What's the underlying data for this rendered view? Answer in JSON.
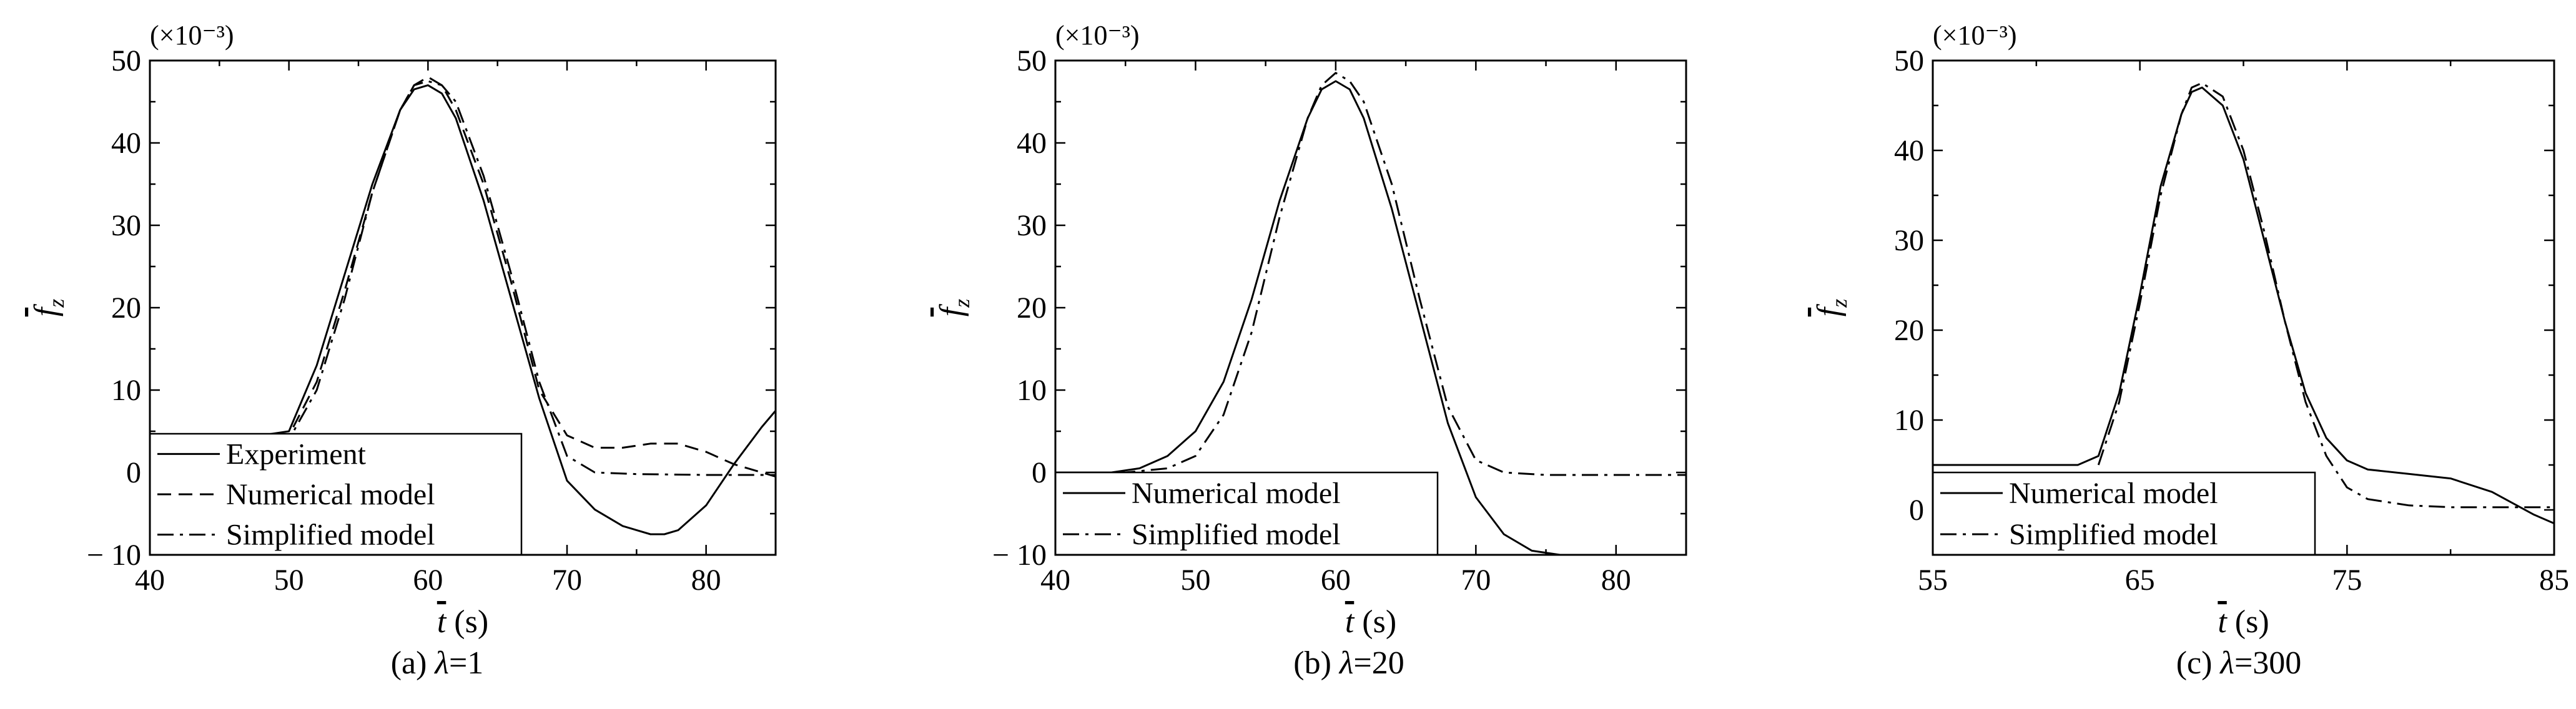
{
  "chart_data": [
    {
      "type": "line",
      "caption_prefix": "(a) ",
      "caption_symbol": "λ",
      "caption_suffix": "=1",
      "scale_note": "(×10⁻³)",
      "xlabel_symbol": "t",
      "xlabel_unit": "(s)",
      "ylabel_symbol": "f",
      "ylabel_sub": "z",
      "xlim": [
        40,
        85
      ],
      "ylim": [
        -10,
        50
      ],
      "xticks": [
        40,
        50,
        60,
        70,
        80
      ],
      "yticks": [
        -10,
        0,
        10,
        20,
        30,
        40,
        50
      ],
      "ytick_labels": [
        "− 10",
        "0",
        "10",
        "20",
        "30",
        "40",
        "50"
      ],
      "legend_position": "bottom-left",
      "series": [
        {
          "name": "Experiment",
          "style": "solid",
          "x": [
            40,
            45,
            48,
            50,
            52,
            54,
            56,
            58,
            59,
            60,
            61,
            62,
            64,
            66,
            68,
            70,
            72,
            74,
            76,
            77,
            78,
            80,
            82,
            84,
            85
          ],
          "y": [
            4,
            4.5,
            4.5,
            5,
            13,
            24,
            35,
            44,
            46.5,
            47,
            46,
            43,
            33,
            21,
            9,
            -1,
            -4.5,
            -6.5,
            -7.5,
            -7.5,
            -7,
            -4,
            1,
            5.5,
            7.5
          ]
        },
        {
          "name": "Numerical model",
          "style": "dashed",
          "x": [
            40,
            45,
            48,
            50,
            52,
            54,
            56,
            58,
            59,
            60,
            61,
            62,
            64,
            66,
            68,
            70,
            72,
            74,
            76,
            77,
            78,
            80,
            82,
            84,
            85
          ],
          "y": [
            4,
            4,
            4.5,
            4.5,
            11,
            22,
            34,
            44,
            47,
            48,
            47,
            44,
            35,
            23,
            10,
            4.5,
            3,
            3,
            3.5,
            3.5,
            3.5,
            2.5,
            1,
            0,
            -0.5
          ]
        },
        {
          "name": "Simplified model",
          "style": "dashdot",
          "x": [
            40,
            45,
            48,
            50,
            52,
            54,
            56,
            58,
            59,
            60,
            61,
            62,
            64,
            66,
            68,
            70,
            72,
            75,
            80,
            85
          ],
          "y": [
            4,
            4,
            4,
            4,
            10,
            21,
            34,
            44,
            47,
            47.5,
            47,
            45,
            36,
            24,
            11,
            2,
            0,
            -0.2,
            -0.3,
            -0.3
          ]
        }
      ]
    },
    {
      "type": "line",
      "caption_prefix": "(b) ",
      "caption_symbol": "λ",
      "caption_suffix": "=20",
      "scale_note": "(×10⁻³)",
      "xlabel_symbol": "t",
      "xlabel_unit": "(s)",
      "ylabel_symbol": "f",
      "ylabel_sub": "z",
      "xlim": [
        40,
        85
      ],
      "ylim": [
        -10,
        50
      ],
      "xticks": [
        40,
        50,
        60,
        70,
        80
      ],
      "yticks": [
        -10,
        0,
        10,
        20,
        30,
        40,
        50
      ],
      "ytick_labels": [
        "− 10",
        "0",
        "10",
        "20",
        "30",
        "40",
        "50"
      ],
      "legend_position": "bottom-left",
      "series": [
        {
          "name": "Numerical model",
          "style": "solid",
          "x": [
            40,
            44,
            46,
            48,
            50,
            52,
            54,
            56,
            58,
            59,
            60,
            61,
            62,
            64,
            66,
            68,
            70,
            72,
            74,
            76
          ],
          "y": [
            0,
            0,
            0.5,
            2,
            5,
            11,
            21,
            33,
            43,
            46.5,
            47.5,
            46.5,
            43,
            32,
            19,
            6,
            -3,
            -7.5,
            -9.5,
            -10
          ]
        },
        {
          "name": "Simplified model",
          "style": "dashdot",
          "x": [
            40,
            45,
            48,
            50,
            52,
            54,
            56,
            58,
            59,
            60,
            61,
            62,
            64,
            66,
            68,
            70,
            72,
            75,
            80,
            85
          ],
          "y": [
            0,
            0,
            0.5,
            2,
            7,
            17,
            31,
            43,
            47,
            48.5,
            47.5,
            45,
            35,
            21,
            8,
            1.5,
            0,
            -0.3,
            -0.3,
            -0.3
          ]
        }
      ]
    },
    {
      "type": "line",
      "caption_prefix": "(c) ",
      "caption_symbol": "λ",
      "caption_suffix": "=300",
      "scale_note": "(×10⁻³)",
      "xlabel_symbol": "t",
      "xlabel_unit": "(s)",
      "ylabel_symbol": "f",
      "ylabel_sub": "z",
      "xlim": [
        55,
        85
      ],
      "ylim": [
        -5,
        50
      ],
      "xticks": [
        55,
        65,
        75,
        85
      ],
      "yticks": [
        0,
        10,
        20,
        30,
        40,
        50
      ],
      "ytick_labels": [
        "0",
        "10",
        "20",
        "30",
        "40",
        "50"
      ],
      "legend_position": "bottom-left",
      "series": [
        {
          "name": "Numerical model",
          "style": "solid",
          "x": [
            55,
            60,
            62,
            63,
            64,
            65,
            66,
            67,
            67.5,
            68,
            69,
            70,
            71,
            72,
            73,
            74,
            75,
            76,
            78,
            80,
            82,
            84,
            85
          ],
          "y": [
            5,
            5,
            5,
            6,
            13,
            24,
            36,
            44,
            46.5,
            47,
            45,
            39,
            30,
            21,
            13,
            8,
            5.5,
            4.5,
            4,
            3.5,
            2,
            -0.5,
            -1.5
          ]
        },
        {
          "name": "Simplified model",
          "style": "dashdot",
          "x": [
            63,
            64,
            65,
            66,
            67,
            67.5,
            68,
            69,
            70,
            71,
            72,
            73,
            74,
            75,
            76,
            78,
            80,
            85
          ],
          "y": [
            5,
            12,
            23,
            35,
            44,
            47,
            47.5,
            46,
            40,
            31,
            21,
            12,
            6,
            2.5,
            1.2,
            0.5,
            0.3,
            0.3
          ]
        }
      ]
    }
  ]
}
